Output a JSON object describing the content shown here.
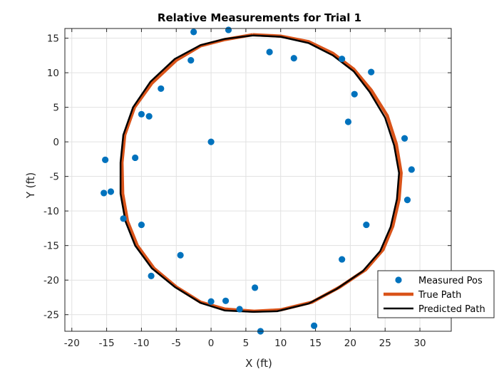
{
  "chart_data": {
    "type": "scatter",
    "title": "Relative Measurements for Trial 1",
    "xlabel": "X (ft)",
    "ylabel": "Y (ft)",
    "xlim": [
      -21,
      34.5
    ],
    "ylim": [
      -27.4,
      16.4
    ],
    "xticks": [
      -20,
      -15,
      -10,
      -5,
      0,
      5,
      10,
      15,
      20,
      25,
      30
    ],
    "yticks": [
      -25,
      -20,
      -15,
      -10,
      -5,
      0,
      5,
      10,
      15
    ],
    "grid": true,
    "legend_position": "bottom-right",
    "series": [
      {
        "name": "Measured Pos",
        "kind": "marker",
        "color": "#0072BD",
        "points": [
          [
            -2.5,
            15.9
          ],
          [
            2.5,
            16.2
          ],
          [
            8.4,
            13.0
          ],
          [
            11.9,
            12.1
          ],
          [
            18.8,
            12.0
          ],
          [
            23.0,
            10.1
          ],
          [
            -2.9,
            11.8
          ],
          [
            20.6,
            6.9
          ],
          [
            -7.2,
            7.7
          ],
          [
            -10.0,
            4.0
          ],
          [
            -8.9,
            3.7
          ],
          [
            19.7,
            2.9
          ],
          [
            0.0,
            0.0
          ],
          [
            27.8,
            0.5
          ],
          [
            -15.2,
            -2.6
          ],
          [
            -10.9,
            -2.3
          ],
          [
            28.8,
            -4.0
          ],
          [
            -15.4,
            -7.4
          ],
          [
            -14.4,
            -7.2
          ],
          [
            28.2,
            -8.4
          ],
          [
            -12.6,
            -11.1
          ],
          [
            -10.0,
            -12.0
          ],
          [
            22.3,
            -12.0
          ],
          [
            -4.4,
            -16.4
          ],
          [
            18.8,
            -17.0
          ],
          [
            -8.6,
            -19.4
          ],
          [
            6.3,
            -21.1
          ],
          [
            0.0,
            -23.1
          ],
          [
            2.1,
            -23.0
          ],
          [
            4.1,
            -24.2
          ],
          [
            14.8,
            -26.6
          ],
          [
            7.1,
            -27.4
          ]
        ]
      },
      {
        "name": "True Path",
        "kind": "line",
        "color": "#D95319",
        "points": [
          [
            6.0,
            15.5
          ],
          [
            10.0,
            15.3
          ],
          [
            14.0,
            14.5
          ],
          [
            17.5,
            12.8
          ],
          [
            20.5,
            10.5
          ],
          [
            23.0,
            7.5
          ],
          [
            25.3,
            3.8
          ],
          [
            26.6,
            -0.3
          ],
          [
            27.3,
            -4.5
          ],
          [
            27.0,
            -8.3
          ],
          [
            26.1,
            -12.2
          ],
          [
            24.7,
            -15.6
          ],
          [
            22.2,
            -18.5
          ],
          [
            18.5,
            -21.0
          ],
          [
            14.5,
            -23.2
          ],
          [
            10.0,
            -24.3
          ],
          [
            6.2,
            -24.5
          ],
          [
            2.0,
            -24.2
          ],
          [
            -1.5,
            -23.2
          ],
          [
            -5.0,
            -21.0
          ],
          [
            -8.2,
            -18.3
          ],
          [
            -10.6,
            -15.0
          ],
          [
            -12.0,
            -11.5
          ],
          [
            -12.7,
            -7.5
          ],
          [
            -12.8,
            -3.0
          ],
          [
            -12.4,
            1.0
          ],
          [
            -11.0,
            5.0
          ],
          [
            -8.5,
            8.5
          ],
          [
            -5.0,
            11.8
          ],
          [
            -1.5,
            13.9
          ],
          [
            2.0,
            14.8
          ],
          [
            6.0,
            15.5
          ]
        ]
      },
      {
        "name": "Predicted Path",
        "kind": "line",
        "color": "#000000",
        "points": [
          [
            6.0,
            15.4
          ],
          [
            10.0,
            15.2
          ],
          [
            14.0,
            14.3
          ],
          [
            17.5,
            12.5
          ],
          [
            20.5,
            10.2
          ],
          [
            22.8,
            7.2
          ],
          [
            25.0,
            3.5
          ],
          [
            26.3,
            -0.5
          ],
          [
            27.0,
            -4.5
          ],
          [
            26.7,
            -8.3
          ],
          [
            25.8,
            -12.3
          ],
          [
            24.3,
            -15.8
          ],
          [
            21.8,
            -18.7
          ],
          [
            18.0,
            -21.3
          ],
          [
            14.0,
            -23.4
          ],
          [
            9.5,
            -24.5
          ],
          [
            6.0,
            -24.6
          ],
          [
            2.0,
            -24.4
          ],
          [
            -1.5,
            -23.3
          ],
          [
            -5.2,
            -21.0
          ],
          [
            -8.5,
            -18.3
          ],
          [
            -10.9,
            -15.0
          ],
          [
            -12.3,
            -11.5
          ],
          [
            -13.0,
            -7.5
          ],
          [
            -13.0,
            -3.0
          ],
          [
            -12.6,
            1.0
          ],
          [
            -11.2,
            5.0
          ],
          [
            -8.7,
            8.7
          ],
          [
            -5.2,
            12.0
          ],
          [
            -1.5,
            14.0
          ],
          [
            2.0,
            14.9
          ],
          [
            6.0,
            15.4
          ]
        ]
      }
    ]
  }
}
